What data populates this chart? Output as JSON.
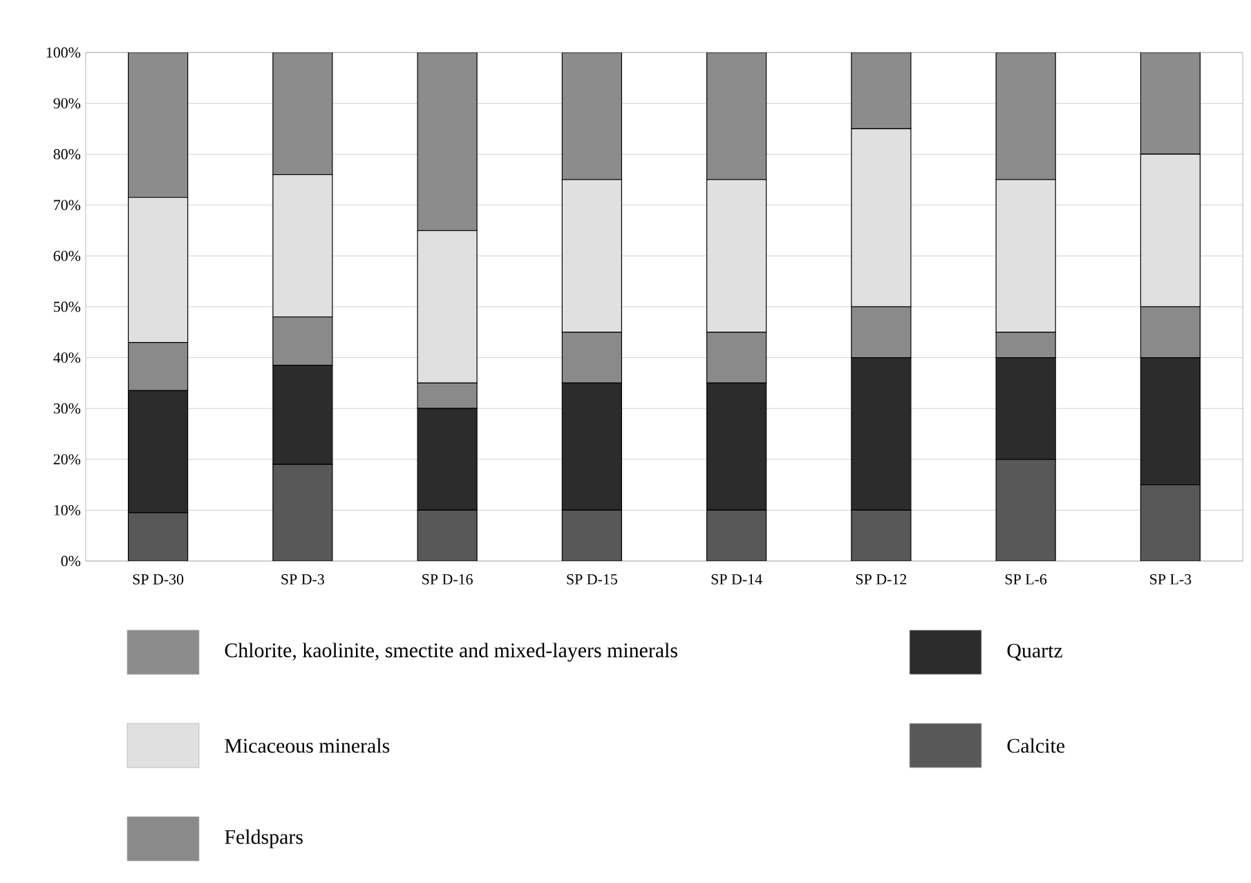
{
  "chart_data": {
    "type": "bar",
    "stacked": true,
    "categories": [
      "SP D-30",
      "SP D-3",
      "SP D-16",
      "SP D-15",
      "SP D-14",
      "SP D-12",
      "SP L-6",
      "SP L-3"
    ],
    "series": [
      {
        "name": "Calcite",
        "color": "#585858",
        "values": [
          9.5,
          19,
          10,
          10,
          10,
          10,
          20,
          15
        ]
      },
      {
        "name": "Quartz",
        "color": "#2c2c2c",
        "values": [
          24,
          19.5,
          20,
          25,
          25,
          30,
          20,
          25
        ]
      },
      {
        "name": "Feldspars",
        "color": "#8a8a8a",
        "values": [
          9.5,
          9.5,
          5,
          10,
          10,
          10,
          5,
          10
        ]
      },
      {
        "name": "Micaceous minerals",
        "color": "#e0e0e0",
        "values": [
          28.5,
          28,
          30,
          30,
          30,
          35,
          30,
          30
        ]
      },
      {
        "name": "Chlorite, kaolinite, smectite and mixed-layers minerals",
        "color": "#8c8c8c",
        "values": [
          28.5,
          24,
          35,
          25,
          25,
          15,
          25,
          20
        ]
      }
    ],
    "ylim": [
      0,
      100
    ],
    "yticks": [
      {
        "value": 0,
        "label": "0%"
      },
      {
        "value": 10,
        "label": "10%"
      },
      {
        "value": 20,
        "label": "20%"
      },
      {
        "value": 30,
        "label": "30%"
      },
      {
        "value": 40,
        "label": "40%"
      },
      {
        "value": 50,
        "label": "50%"
      },
      {
        "value": 60,
        "label": "60%"
      },
      {
        "value": 70,
        "label": "70%"
      },
      {
        "value": 80,
        "label": "80%"
      },
      {
        "value": 90,
        "label": "90%"
      },
      {
        "value": 100,
        "label": "100%"
      }
    ],
    "grid": "y",
    "legend": "bottom"
  }
}
